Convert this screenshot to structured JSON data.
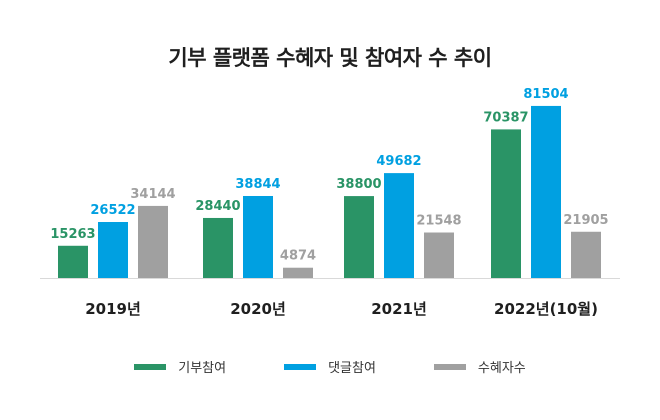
{
  "chart_data": {
    "type": "bar",
    "title": "기부 플랫폼  수혜자 및 참여자 수 추이",
    "categories": [
      "2019년",
      "2020년",
      "2021년",
      "2022년(10월)"
    ],
    "series": [
      {
        "name": "기부참여",
        "color": "#2a9466",
        "values": [
          15263,
          28440,
          38800,
          70387
        ]
      },
      {
        "name": "댓글참여",
        "color": "#00a0e1",
        "values": [
          26522,
          38844,
          49682,
          81504
        ]
      },
      {
        "name": "수혜자수",
        "color": "#a0a0a0",
        "values": [
          34144,
          4874,
          21548,
          21905
        ]
      }
    ],
    "ylim": [
      0,
      90000
    ],
    "grid": false,
    "legend_position": "bottom"
  }
}
